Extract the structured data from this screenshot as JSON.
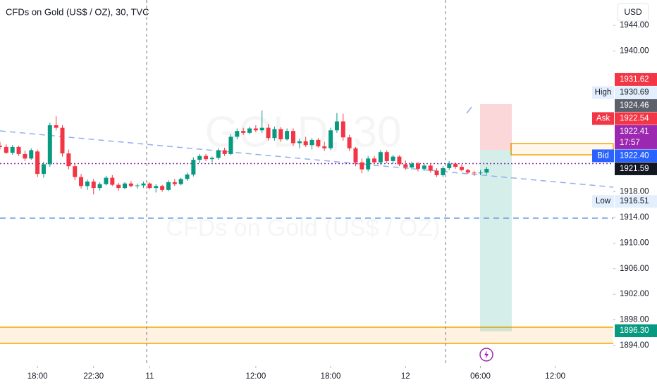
{
  "header": {
    "title": "CFDs on Gold (US$ / OZ), 30, TVC",
    "currency": "USD"
  },
  "watermark": {
    "symbol": "GOLD, 30",
    "description": "CFDs on Gold (US$ / OZ)"
  },
  "chart_data": {
    "type": "candlestick",
    "x": [
      0,
      1,
      2,
      3,
      4,
      5,
      6,
      7,
      8,
      9,
      10,
      11,
      12,
      13,
      14,
      15,
      16,
      17,
      18,
      19,
      20,
      21,
      22,
      23,
      24,
      25,
      26,
      27,
      28,
      29,
      30,
      31,
      32,
      33,
      34,
      35,
      36,
      37,
      38,
      39,
      40,
      41,
      42,
      43,
      44,
      45,
      46,
      47,
      48,
      49,
      50,
      51,
      52,
      53,
      54,
      55,
      56,
      57,
      58,
      59,
      60,
      61,
      62,
      63,
      64,
      65,
      66,
      67,
      68,
      69,
      70,
      71,
      72,
      73,
      74,
      75,
      76,
      77,
      78
    ],
    "open": [
      1925.2,
      1925.0,
      1924.1,
      1925.0,
      1923.9,
      1923.2,
      1924.3,
      1920.8,
      1922.3,
      1928.4,
      1928.0,
      1924.0,
      1922.0,
      1920.3,
      1918.9,
      1919.6,
      1918.6,
      1919.2,
      1920.2,
      1919.1,
      1918.6,
      1919.3,
      1918.9,
      1919.0,
      1919.3,
      1918.6,
      1918.9,
      1918.3,
      1919.5,
      1919.2,
      1920.0,
      1920.7,
      1923.0,
      1923.6,
      1923.1,
      1923.3,
      1924.5,
      1923.9,
      1926.6,
      1927.5,
      1927.2,
      1927.9,
      1927.6,
      1928.0,
      1926.4,
      1927.8,
      1926.2,
      1927.5,
      1925.6,
      1925.9,
      1925.3,
      1926.1,
      1925.1,
      1924.8,
      1927.6,
      1929.0,
      1926.5,
      1924.8,
      1922.6,
      1921.5,
      1923.2,
      1922.6,
      1924.2,
      1922.8,
      1923.5,
      1922.3,
      1921.8,
      1922.4,
      1921.6,
      1922.1,
      1921.3,
      1920.6,
      1921.7,
      1922.4,
      1921.9,
      1921.4,
      1921.0,
      1920.9,
      1921.0
    ],
    "high": [
      1925.8,
      1925.4,
      1925.3,
      1925.2,
      1924.4,
      1924.8,
      1924.6,
      1922.7,
      1928.8,
      1929.8,
      1928.4,
      1924.6,
      1922.5,
      1920.8,
      1919.9,
      1920.0,
      1919.5,
      1920.5,
      1920.6,
      1919.4,
      1919.5,
      1919.7,
      1919.3,
      1919.6,
      1919.5,
      1919.2,
      1919.1,
      1919.8,
      1920.0,
      1920.2,
      1921.0,
      1923.4,
      1923.9,
      1923.9,
      1923.5,
      1924.8,
      1924.9,
      1927.0,
      1927.9,
      1928.0,
      1928.2,
      1928.4,
      1930.7,
      1928.6,
      1928.2,
      1928.1,
      1927.9,
      1927.9,
      1926.3,
      1926.6,
      1926.4,
      1926.4,
      1925.8,
      1928.0,
      1930.3,
      1930.2,
      1926.9,
      1925.0,
      1923.2,
      1923.6,
      1923.6,
      1924.5,
      1924.5,
      1923.8,
      1923.7,
      1922.9,
      1922.7,
      1922.7,
      1922.4,
      1922.5,
      1921.7,
      1922.0,
      1922.8,
      1922.6,
      1922.3,
      1921.6,
      1921.3,
      1921.4,
      1921.9
    ],
    "low": [
      1924.6,
      1923.9,
      1923.8,
      1923.6,
      1922.8,
      1923.0,
      1920.3,
      1920.2,
      1921.9,
      1927.6,
      1923.5,
      1921.5,
      1919.8,
      1918.5,
      1918.3,
      1917.6,
      1918.2,
      1919.0,
      1918.9,
      1918.2,
      1918.4,
      1918.7,
      1918.5,
      1918.6,
      1918.4,
      1917.9,
      1918.0,
      1918.1,
      1918.9,
      1919.0,
      1919.7,
      1920.4,
      1922.5,
      1922.8,
      1922.6,
      1923.0,
      1923.6,
      1923.7,
      1926.2,
      1926.9,
      1927.0,
      1927.3,
      1927.2,
      1926.0,
      1926.0,
      1925.8,
      1926.0,
      1925.2,
      1924.8,
      1925.0,
      1924.6,
      1924.9,
      1924.4,
      1924.5,
      1927.2,
      1926.0,
      1924.4,
      1922.0,
      1920.9,
      1921.2,
      1922.3,
      1922.2,
      1922.5,
      1922.4,
      1922.0,
      1921.4,
      1921.5,
      1921.2,
      1921.3,
      1921.0,
      1920.3,
      1920.3,
      1921.4,
      1921.6,
      1921.2,
      1920.8,
      1920.5,
      1920.6,
      1920.7
    ],
    "close": [
      1925.0,
      1924.1,
      1925.0,
      1923.9,
      1923.2,
      1924.5,
      1920.8,
      1922.3,
      1928.4,
      1928.0,
      1924.0,
      1922.0,
      1920.3,
      1918.9,
      1919.6,
      1918.6,
      1919.2,
      1920.2,
      1919.1,
      1918.6,
      1919.3,
      1918.9,
      1919.0,
      1919.3,
      1918.6,
      1918.9,
      1918.3,
      1919.5,
      1919.2,
      1920.0,
      1920.7,
      1923.0,
      1923.6,
      1923.1,
      1923.3,
      1924.5,
      1923.9,
      1926.6,
      1927.5,
      1927.2,
      1927.9,
      1927.6,
      1928.0,
      1926.4,
      1927.8,
      1926.2,
      1927.5,
      1925.6,
      1925.9,
      1925.3,
      1926.1,
      1925.1,
      1924.8,
      1927.6,
      1929.0,
      1926.5,
      1924.8,
      1922.6,
      1921.5,
      1923.2,
      1922.6,
      1924.2,
      1922.8,
      1923.5,
      1922.3,
      1921.8,
      1922.4,
      1921.6,
      1922.1,
      1921.3,
      1920.6,
      1921.7,
      1922.4,
      1921.9,
      1921.4,
      1921.0,
      1920.9,
      1921.0,
      1921.59
    ],
    "up_color": "#089981",
    "down_color": "#f23645",
    "xlim": [
      0,
      98.3
    ],
    "xticks": [
      {
        "value": 6,
        "label": "18:00"
      },
      {
        "value": 15,
        "label": "22:30"
      },
      {
        "value": 24,
        "label": "11"
      },
      {
        "value": 41,
        "label": "12:00"
      },
      {
        "value": 53,
        "label": "18:00"
      },
      {
        "value": 65,
        "label": "12"
      },
      {
        "value": 77,
        "label": "06:00"
      },
      {
        "value": 89,
        "label": "12:00"
      }
    ],
    "ylim": [
      1891.36,
      1947.96
    ],
    "yticks": [
      {
        "value": 1944,
        "label": "1944.00"
      },
      {
        "value": 1940,
        "label": "1940.00"
      },
      {
        "value": 1918,
        "label": "1918.00"
      },
      {
        "value": 1914,
        "label": "1914.00"
      },
      {
        "value": 1910,
        "label": "1910.00"
      },
      {
        "value": 1906,
        "label": "1906.00"
      },
      {
        "value": 1902,
        "label": "1902.00"
      },
      {
        "value": 1898,
        "label": "1898.00"
      },
      {
        "value": 1894,
        "label": "1894.00"
      }
    ],
    "price_labels": [
      {
        "value": 1931.62,
        "label": "1931.62",
        "color": "#f23645",
        "text_color": "#ffffff"
      },
      {
        "tag": "High",
        "value": 1930.69,
        "label": "1930.69",
        "color": "#e3effd",
        "text_color": "#131722"
      },
      {
        "value": 1924.46,
        "label": "1924.46",
        "color": "#5d606b",
        "text_color": "#ffffff"
      },
      {
        "tag": "Ask",
        "value": 1922.54,
        "label": "1922.54",
        "color": "#f23645",
        "text_color": "#ffffff"
      },
      {
        "value": 1922.41,
        "label": "1922.41",
        "countdown": "17:57",
        "color": "#9c27b0",
        "text_color": "#ffffff"
      },
      {
        "tag": "Bid",
        "value": 1922.4,
        "label": "1922.40",
        "color": "#2962ff",
        "text_color": "#ffffff"
      },
      {
        "value": 1921.59,
        "label": "1921.59",
        "color": "#131722",
        "text_color": "#ffffff"
      },
      {
        "tag": "Low",
        "value": 1916.51,
        "label": "1916.51",
        "color": "#e3effd",
        "text_color": "#131722"
      },
      {
        "value": 1896.3,
        "label": "1896.30",
        "color": "#089981",
        "text_color": "#ffffff"
      }
    ]
  }
}
